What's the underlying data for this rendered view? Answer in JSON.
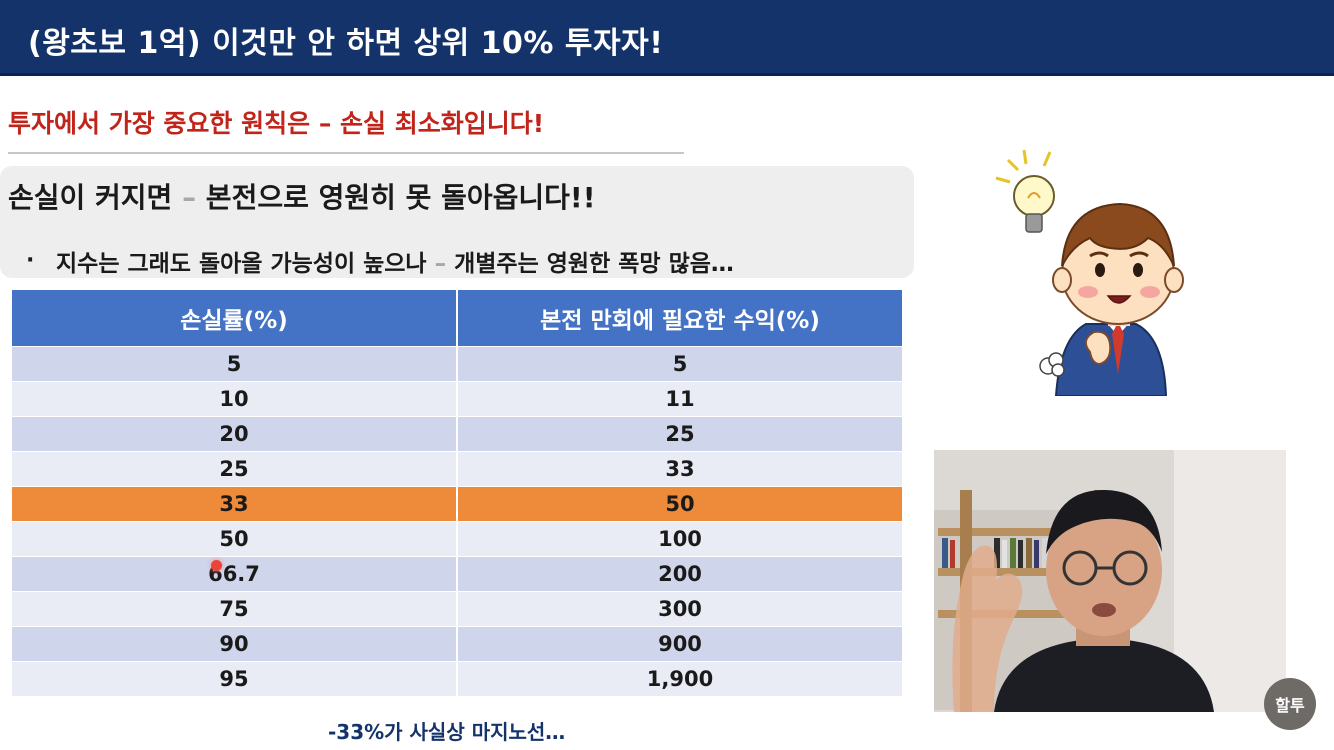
{
  "header": {
    "title": "(왕초보 1억) 이것만 안 하면 상위 10% 투자자!"
  },
  "subtitle": {
    "text": "투자에서 가장 중요한 원칙은 – 손실 최소화입니다!"
  },
  "callout": {
    "main_before": "손실이 커지면 ",
    "main_dash": "–",
    "main_after": " 본전으로 영원히 못 돌아옵니다!!",
    "bullet_symbol": "·",
    "bullet_before": "지수는 그래도 돌아올 가능성이 높으나 ",
    "bullet_dash": "–",
    "bullet_after": " 개별주는 영원한 폭망 많음…"
  },
  "table": {
    "headers": [
      "손실률(%)",
      "본전 만회에 필요한 수익(%)"
    ],
    "rows": [
      [
        "5",
        "5"
      ],
      [
        "10",
        "11"
      ],
      [
        "20",
        "25"
      ],
      [
        "25",
        "33"
      ],
      [
        "33",
        "50"
      ],
      [
        "50",
        "100"
      ],
      [
        "66.7",
        "200"
      ],
      [
        "75",
        "300"
      ],
      [
        "90",
        "900"
      ],
      [
        "95",
        "1,900"
      ]
    ],
    "highlight_row": 4,
    "highlight_color": "#ed8b3b"
  },
  "footnote": {
    "text": "-33%가 사실상 마지노선…"
  },
  "logo": {
    "text": "할투"
  },
  "colors": {
    "header_bg": "#14336b",
    "subtitle_red": "#c0241a",
    "table_header": "#4472c4",
    "row_odd": "#cfd5ea",
    "row_even": "#e9ebf5"
  },
  "icons": {
    "character": "businessman-lightbulb-illustration",
    "webcam": "presenter-webcam-feed"
  }
}
